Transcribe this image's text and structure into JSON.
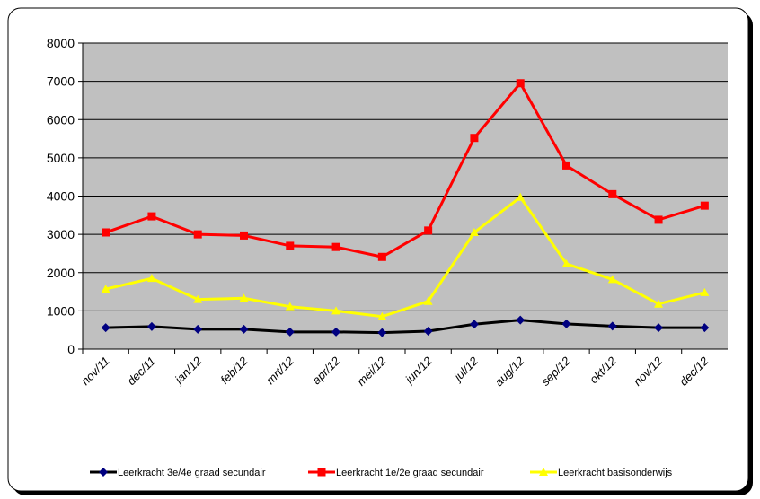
{
  "chart_data": {
    "type": "line",
    "categories": [
      "nov/11",
      "dec/11",
      "jan/12",
      "feb/12",
      "mrt/12",
      "apr/12",
      "mei/12",
      "jun/12",
      "jul/12",
      "aug/12",
      "sep/12",
      "okt/12",
      "nov/12",
      "dec/12"
    ],
    "series": [
      {
        "name": "Leerkracht 3e/4e graad secundair",
        "color": "#000000",
        "marker": "diamond",
        "marker_color": "#000080",
        "values": [
          560,
          590,
          520,
          520,
          450,
          450,
          430,
          470,
          650,
          760,
          660,
          600,
          560,
          560
        ]
      },
      {
        "name": "Leerkracht 1e/2e graad secundair",
        "color": "#ff0000",
        "marker": "square",
        "marker_color": "#ff0000",
        "values": [
          3050,
          3470,
          3000,
          2970,
          2700,
          2670,
          2410,
          3100,
          5520,
          6950,
          4800,
          4050,
          3380,
          3750
        ]
      },
      {
        "name": "Leerkracht basisonderwijs",
        "color": "#ffff00",
        "marker": "triangle",
        "marker_color": "#ffff00",
        "values": [
          1570,
          1850,
          1300,
          1330,
          1110,
          1000,
          850,
          1250,
          3050,
          3970,
          2230,
          1820,
          1180,
          1480
        ]
      }
    ],
    "ylim": [
      0,
      8000
    ],
    "yticks": [
      0,
      1000,
      2000,
      3000,
      4000,
      5000,
      6000,
      7000,
      8000
    ],
    "grid": true,
    "plot_background": "#c0c0c0",
    "legend": "bottom"
  }
}
